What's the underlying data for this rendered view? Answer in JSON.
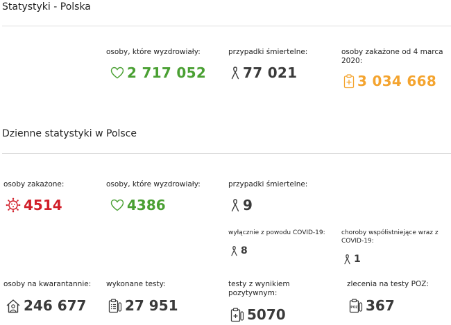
{
  "colors": {
    "recovered": "#4aa033",
    "deaths": "#3a3a3a",
    "infected": "#d11f2a",
    "cumulative": "#f4a42f",
    "rule": "#dedede"
  },
  "poland": {
    "title": "Statystyki - Polska",
    "recovered": {
      "label": "osoby, które wyzdrowiały:",
      "value": "2 717 052",
      "icon": "heart-icon"
    },
    "deaths": {
      "label": "przypadki śmiertelne:",
      "value": "77 021",
      "icon": "ribbon-icon"
    },
    "infected_total": {
      "label": "osoby zakażone od 4 marca 2020:",
      "value": "3 034 668",
      "icon": "clipboard-cross-icon"
    }
  },
  "daily": {
    "title": "Dzienne statystyki w Polsce",
    "infected": {
      "label": "osoby zakażone:",
      "value": "4514",
      "icon": "virus-icon"
    },
    "recovered": {
      "label": "osoby, które wyzdrowiały:",
      "value": "4386",
      "icon": "heart-icon"
    },
    "deaths": {
      "label": "przypadki śmiertelne:",
      "value": "9",
      "icon": "ribbon-icon"
    },
    "deaths_covid_only": {
      "label": "wyłącznie z powodu COVID-19:",
      "value": "8",
      "icon": "ribbon-icon"
    },
    "deaths_comorbid": {
      "label": "choroby współistniejące wraz z COVID-19:",
      "value": "1",
      "icon": "ribbon-icon"
    },
    "quarantine": {
      "label": "osoby na kwarantannie:",
      "value": "246 677",
      "icon": "house-person-icon"
    },
    "tests": {
      "label": "wykonane testy:",
      "value": "27 951",
      "icon": "clipboard-list-icon"
    },
    "positive_tests": {
      "label": "testy z wynikiem pozytywnym:",
      "value": "5070",
      "icon": "test-tube-icon"
    },
    "poz_orders": {
      "label": "zlecenia na testy POZ:",
      "value": "367",
      "icon": "poz-clipboard-icon"
    }
  }
}
